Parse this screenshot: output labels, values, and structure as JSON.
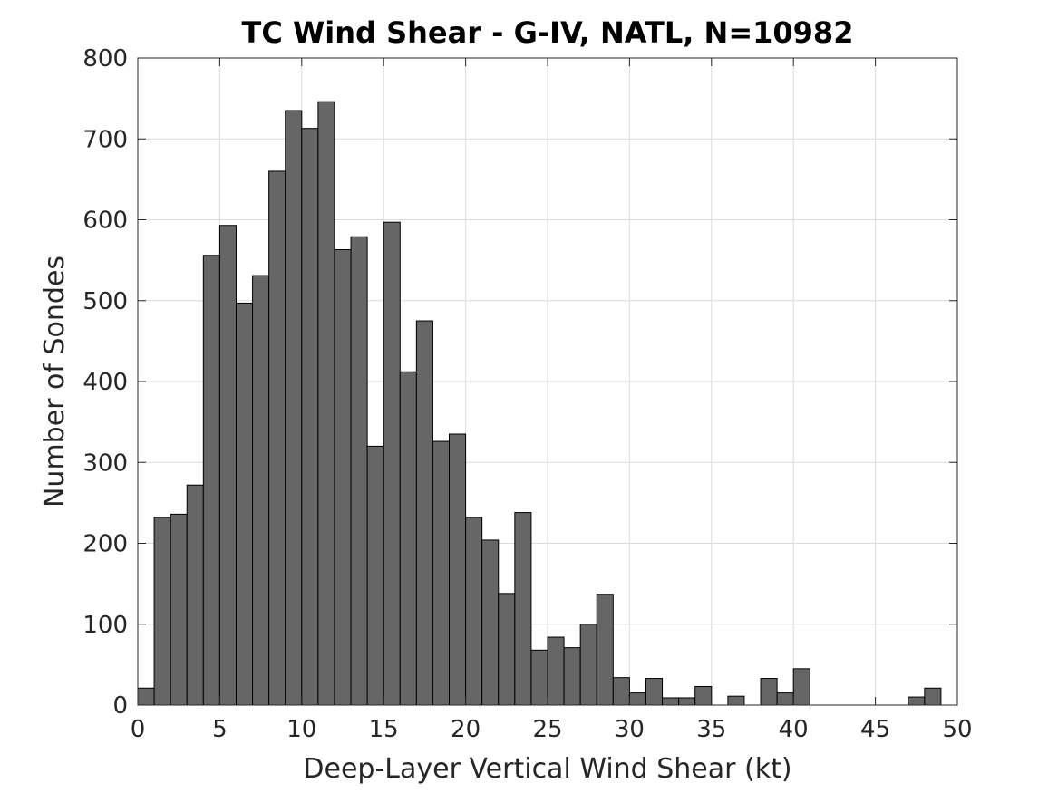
{
  "chart_data": {
    "type": "bar",
    "title": "TC Wind Shear - G-IV, NATL, N=10982",
    "xlabel": "Deep-Layer Vertical Wind Shear (kt)",
    "ylabel": "Number of Sondes",
    "xlim": [
      0,
      50
    ],
    "ylim": [
      0,
      800
    ],
    "xticks": [
      0,
      5,
      10,
      15,
      20,
      25,
      30,
      35,
      40,
      45,
      50
    ],
    "yticks": [
      0,
      100,
      200,
      300,
      400,
      500,
      600,
      700,
      800
    ],
    "grid": true,
    "bin_width": 1,
    "bin_edges_start": 0,
    "values": [
      21,
      232,
      236,
      272,
      556,
      593,
      497,
      531,
      660,
      735,
      713,
      746,
      563,
      579,
      320,
      597,
      412,
      475,
      326,
      335,
      232,
      204,
      138,
      238,
      68,
      84,
      71,
      100,
      137,
      34,
      15,
      33,
      9,
      9,
      23,
      0,
      11,
      0,
      33,
      15,
      45,
      0,
      0,
      0,
      0,
      0,
      0,
      10,
      21
    ],
    "bar_color": "#666666",
    "edge_color": "#000000"
  }
}
